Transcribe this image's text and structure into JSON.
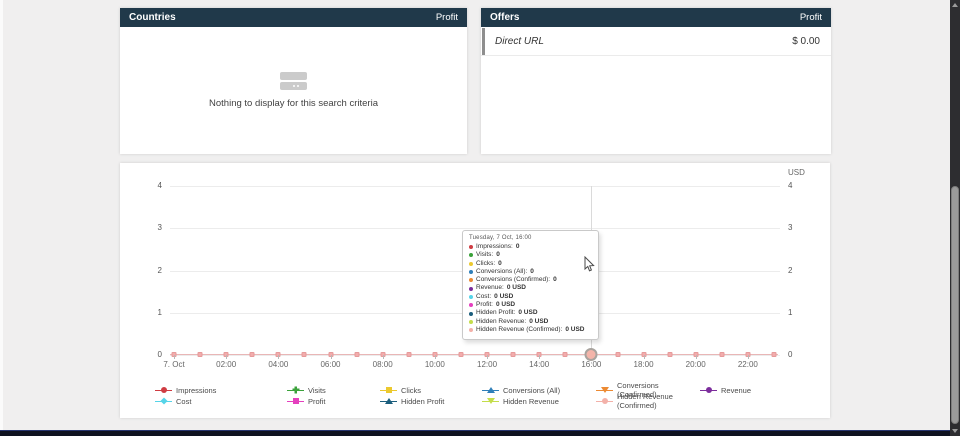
{
  "countries_panel": {
    "title": "Countries",
    "column": "Profit",
    "empty_text": "Nothing to display for this search criteria"
  },
  "offers_panel": {
    "title": "Offers",
    "column": "Profit",
    "rows": [
      {
        "name": "Direct URL",
        "value": "$ 0.00"
      }
    ]
  },
  "chart": {
    "unit": "USD",
    "y_labels": [
      "4",
      "3",
      "2",
      "1",
      "0"
    ],
    "x_labels": [
      "7. Oct",
      "02:00",
      "04:00",
      "06:00",
      "08:00",
      "10:00",
      "12:00",
      "14:00",
      "16:00",
      "18:00",
      "20:00",
      "22:00"
    ],
    "hover_index": 16,
    "point_color": "#f3acac",
    "line_color": "#e9b6b6",
    "header_color": "#20394a",
    "tooltip": {
      "title": "Tuesday, 7 Oct, 16:00",
      "rows": [
        {
          "label": "Impressions",
          "value": "0",
          "color": "#cf3c42"
        },
        {
          "label": "Visits",
          "value": "0",
          "color": "#3ba23b"
        },
        {
          "label": "Clicks",
          "value": "0",
          "color": "#ecc92e"
        },
        {
          "label": "Conversions (All)",
          "value": "0",
          "color": "#2f7fb9"
        },
        {
          "label": "Conversions (Confirmed)",
          "value": "0",
          "color": "#ec8a33"
        },
        {
          "label": "Revenue",
          "value": "0 USD",
          "color": "#7c2d9c"
        },
        {
          "label": "Cost",
          "value": "0 USD",
          "color": "#56d4e8"
        },
        {
          "label": "Profit",
          "value": "0 USD",
          "color": "#e53fbe"
        },
        {
          "label": "Hidden Profit",
          "value": "0 USD",
          "color": "#1b5e7d"
        },
        {
          "label": "Hidden Revenue",
          "value": "0 USD",
          "color": "#c4dd4a"
        },
        {
          "label": "Hidden Revenue (Confirmed)",
          "value": "0 USD",
          "color": "#f3b1a9"
        }
      ]
    },
    "legend": [
      {
        "label": "Impressions",
        "color": "#cf3c42",
        "shape": "circle"
      },
      {
        "label": "Visits",
        "color": "#3ba23b",
        "shape": "plus"
      },
      {
        "label": "Clicks",
        "color": "#ecc92e",
        "shape": "square"
      },
      {
        "label": "Conversions (All)",
        "color": "#2f7fb9",
        "shape": "triangle-up"
      },
      {
        "label": "Conversions (Confirmed)",
        "color": "#ec8a33",
        "shape": "triangle-down"
      },
      {
        "label": "Revenue",
        "color": "#7c2d9c",
        "shape": "circle"
      },
      {
        "label": "Cost",
        "color": "#56d4e8",
        "shape": "diamond"
      },
      {
        "label": "Profit",
        "color": "#e53fbe",
        "shape": "square"
      },
      {
        "label": "Hidden Profit",
        "color": "#1b5e7d",
        "shape": "triangle-up"
      },
      {
        "label": "Hidden Revenue",
        "color": "#c4dd4a",
        "shape": "triangle-down"
      },
      {
        "label": "Hidden Revenue (Confirmed)",
        "color": "#f3b1a9",
        "shape": "circle"
      }
    ]
  },
  "chart_data": {
    "type": "line",
    "title": "",
    "xlabel": "",
    "ylabel": "USD",
    "ylim": [
      0,
      4
    ],
    "grid": true,
    "legend_position": "bottom",
    "x": [
      "00:00",
      "01:00",
      "02:00",
      "03:00",
      "04:00",
      "05:00",
      "06:00",
      "07:00",
      "08:00",
      "09:00",
      "10:00",
      "11:00",
      "12:00",
      "13:00",
      "14:00",
      "15:00",
      "16:00",
      "17:00",
      "18:00",
      "19:00",
      "20:00",
      "21:00",
      "22:00",
      "23:00"
    ],
    "x_tick_labels": [
      "7. Oct",
      "02:00",
      "04:00",
      "06:00",
      "08:00",
      "10:00",
      "12:00",
      "14:00",
      "16:00",
      "18:00",
      "20:00",
      "22:00"
    ],
    "y_ticks": [
      0,
      1,
      2,
      3,
      4
    ],
    "hovered_point": {
      "x": "16:00",
      "date": "Tuesday, 7 Oct"
    },
    "series": [
      {
        "name": "Impressions",
        "values": [
          0,
          0,
          0,
          0,
          0,
          0,
          0,
          0,
          0,
          0,
          0,
          0,
          0,
          0,
          0,
          0,
          0,
          0,
          0,
          0,
          0,
          0,
          0,
          0
        ]
      },
      {
        "name": "Visits",
        "values": [
          0,
          0,
          0,
          0,
          0,
          0,
          0,
          0,
          0,
          0,
          0,
          0,
          0,
          0,
          0,
          0,
          0,
          0,
          0,
          0,
          0,
          0,
          0,
          0
        ]
      },
      {
        "name": "Clicks",
        "values": [
          0,
          0,
          0,
          0,
          0,
          0,
          0,
          0,
          0,
          0,
          0,
          0,
          0,
          0,
          0,
          0,
          0,
          0,
          0,
          0,
          0,
          0,
          0,
          0
        ]
      },
      {
        "name": "Conversions (All)",
        "values": [
          0,
          0,
          0,
          0,
          0,
          0,
          0,
          0,
          0,
          0,
          0,
          0,
          0,
          0,
          0,
          0,
          0,
          0,
          0,
          0,
          0,
          0,
          0,
          0
        ]
      },
      {
        "name": "Conversions (Confirmed)",
        "values": [
          0,
          0,
          0,
          0,
          0,
          0,
          0,
          0,
          0,
          0,
          0,
          0,
          0,
          0,
          0,
          0,
          0,
          0,
          0,
          0,
          0,
          0,
          0,
          0
        ]
      },
      {
        "name": "Revenue",
        "values": [
          0,
          0,
          0,
          0,
          0,
          0,
          0,
          0,
          0,
          0,
          0,
          0,
          0,
          0,
          0,
          0,
          0,
          0,
          0,
          0,
          0,
          0,
          0,
          0
        ]
      },
      {
        "name": "Cost",
        "values": [
          0,
          0,
          0,
          0,
          0,
          0,
          0,
          0,
          0,
          0,
          0,
          0,
          0,
          0,
          0,
          0,
          0,
          0,
          0,
          0,
          0,
          0,
          0,
          0
        ]
      },
      {
        "name": "Profit",
        "values": [
          0,
          0,
          0,
          0,
          0,
          0,
          0,
          0,
          0,
          0,
          0,
          0,
          0,
          0,
          0,
          0,
          0,
          0,
          0,
          0,
          0,
          0,
          0,
          0
        ]
      },
      {
        "name": "Hidden Profit",
        "values": [
          0,
          0,
          0,
          0,
          0,
          0,
          0,
          0,
          0,
          0,
          0,
          0,
          0,
          0,
          0,
          0,
          0,
          0,
          0,
          0,
          0,
          0,
          0,
          0
        ]
      },
      {
        "name": "Hidden Revenue",
        "values": [
          0,
          0,
          0,
          0,
          0,
          0,
          0,
          0,
          0,
          0,
          0,
          0,
          0,
          0,
          0,
          0,
          0,
          0,
          0,
          0,
          0,
          0,
          0,
          0
        ]
      },
      {
        "name": "Hidden Revenue (Confirmed)",
        "values": [
          0,
          0,
          0,
          0,
          0,
          0,
          0,
          0,
          0,
          0,
          0,
          0,
          0,
          0,
          0,
          0,
          0,
          0,
          0,
          0,
          0,
          0,
          0,
          0
        ]
      }
    ]
  }
}
